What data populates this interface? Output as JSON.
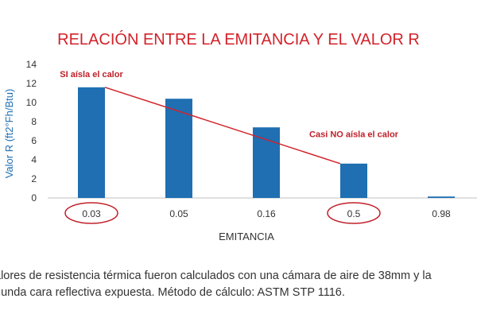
{
  "chart_data": {
    "type": "bar",
    "title": "RELACIÓN ENTRE LA EMITANCIA Y EL VALOR R",
    "xlabel": "EMITANCIA",
    "ylabel": "Valor R (ft2°Fh/Btu)",
    "categories": [
      "0.03",
      "0.05",
      "0.16",
      "0.5",
      "0.98"
    ],
    "values": [
      11.6,
      10.4,
      7.4,
      3.6,
      0.15
    ],
    "ylim": [
      0,
      14
    ],
    "yticks": [
      0,
      2,
      4,
      6,
      8,
      10,
      12,
      14
    ],
    "grid": false,
    "bar_color": "#1f6fb2",
    "trend_line": {
      "from_category": "0.03",
      "to_category": "0.5",
      "color": "#d2232a"
    },
    "highlighted_categories": [
      "0.03",
      "0.5"
    ],
    "annotations": [
      {
        "text": "SI aísla el calor",
        "category": "0.03",
        "y": 13.0
      },
      {
        "text": "Casi NO aísla el calor",
        "category": "0.5",
        "y": 6.7
      }
    ]
  },
  "footnote": {
    "line1": "alores de resistencia térmica fueron calculados con una cámara de aire de 38mm y la",
    "line2": "gunda cara reflectiva expuesta. Método de cálculo: ASTM STP 1116."
  },
  "colors": {
    "title": "#d2232a",
    "bars": "#1f6fb2",
    "annotation": "#c0202a",
    "axis_label": "#1f6fb2"
  }
}
